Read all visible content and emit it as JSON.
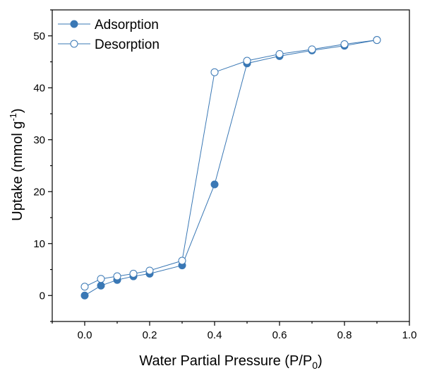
{
  "chart_data": {
    "type": "line",
    "xlabel_main": "Water Partial Pressure (P/P",
    "xlabel_sub": "0",
    "xlabel_end": ")",
    "ylabel_main": "Uptake (mmol g",
    "ylabel_sup": "-1",
    "ylabel_end": ")",
    "xlim": [
      -0.1,
      1.0
    ],
    "ylim": [
      -5,
      55
    ],
    "x_ticks": [
      0.0,
      0.2,
      0.4,
      0.6,
      0.8,
      1.0
    ],
    "x_tick_labels": [
      "0.0",
      "0.2",
      "0.4",
      "0.6",
      "0.8",
      "1.0"
    ],
    "y_ticks": [
      0,
      10,
      20,
      30,
      40,
      50
    ],
    "y_tick_labels": [
      "0",
      "10",
      "20",
      "30",
      "40",
      "50"
    ],
    "legend_position": "top-left",
    "series": [
      {
        "name": "Adsorption",
        "marker": "filled-circle",
        "color": "#3a78b5",
        "x": [
          0.0,
          0.05,
          0.1,
          0.15,
          0.2,
          0.3,
          0.4,
          0.5,
          0.6,
          0.7,
          0.8,
          0.9
        ],
        "y": [
          0.0,
          1.9,
          3.0,
          3.7,
          4.2,
          5.8,
          21.4,
          44.7,
          46.1,
          47.2,
          48.1,
          49.2
        ]
      },
      {
        "name": "Desorption",
        "marker": "open-circle",
        "color": "#3a78b5",
        "x": [
          0.0,
          0.05,
          0.1,
          0.15,
          0.2,
          0.3,
          0.4,
          0.5,
          0.6,
          0.7,
          0.8,
          0.9
        ],
        "y": [
          1.7,
          3.2,
          3.7,
          4.2,
          4.8,
          6.7,
          43.0,
          45.2,
          46.5,
          47.4,
          48.4,
          49.2
        ]
      }
    ]
  }
}
